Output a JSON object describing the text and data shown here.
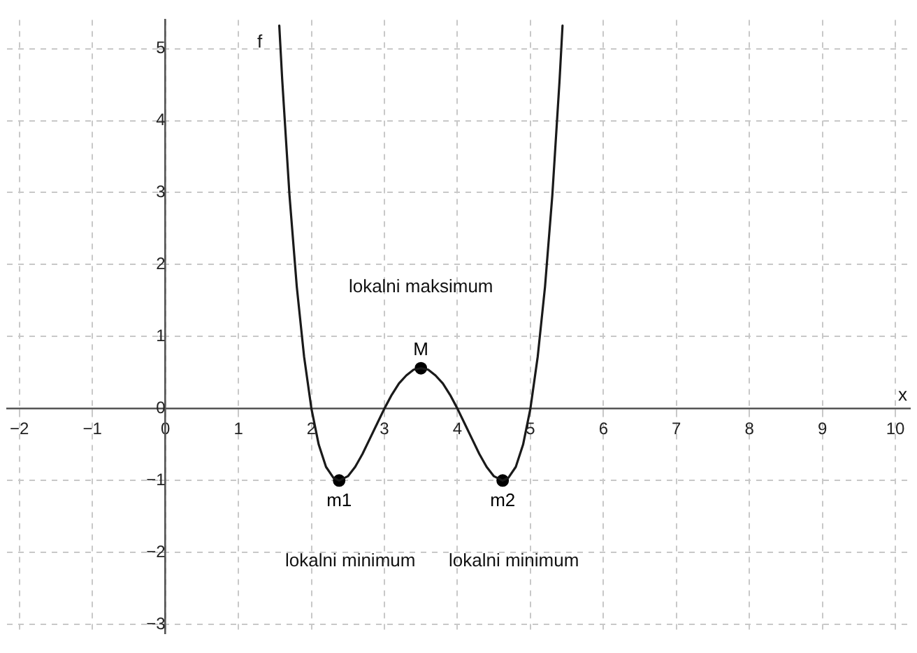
{
  "chart_data": {
    "type": "line",
    "xlabel": "x",
    "xlim": [
      -2.17,
      10.2
    ],
    "ylim": [
      -3.12,
      5.4
    ],
    "xticks": [
      -2,
      -1,
      0,
      1,
      2,
      3,
      4,
      5,
      6,
      7,
      8,
      9,
      10
    ],
    "yticks": [
      -3,
      -2,
      -1,
      0,
      1,
      2,
      3,
      4,
      5
    ],
    "grid": true,
    "legend": false,
    "series": [
      {
        "type": "line",
        "name": "f",
        "color": "#1a1a1a",
        "marker": "none",
        "line_style": "solid",
        "x": [
          1.56,
          1.6,
          1.7,
          1.8,
          1.9,
          2.0,
          2.1,
          2.2,
          2.3,
          2.38,
          2.5,
          2.6,
          2.7,
          2.8,
          2.9,
          3.0,
          3.1,
          3.2,
          3.3,
          3.4,
          3.5,
          3.6,
          3.7,
          3.8,
          3.9,
          4.0,
          4.1,
          4.2,
          4.3,
          4.4,
          4.5,
          4.62,
          4.7,
          4.8,
          4.9,
          5.0,
          5.1,
          5.2,
          5.3,
          5.4,
          5.44
        ],
        "values": [
          5.32,
          4.57,
          2.96,
          1.69,
          0.72,
          0,
          -0.5,
          -0.81,
          -0.96,
          -1.0,
          -0.94,
          -0.81,
          -0.63,
          -0.42,
          -0.21,
          0,
          0.19,
          0.35,
          0.46,
          0.54,
          0.56,
          0.54,
          0.46,
          0.35,
          0.19,
          0,
          -0.21,
          -0.42,
          -0.63,
          -0.81,
          -0.94,
          -1.0,
          -0.96,
          -0.81,
          -0.5,
          0,
          0.72,
          1.69,
          2.96,
          4.57,
          5.32
        ]
      },
      {
        "type": "scatter",
        "name": "M",
        "color": "#000000",
        "marker": "circle",
        "x": [
          3.5
        ],
        "values": [
          0.56
        ]
      },
      {
        "type": "scatter",
        "name": "m1",
        "color": "#000000",
        "marker": "circle",
        "x": [
          2.38
        ],
        "values": [
          -1.0
        ]
      },
      {
        "type": "scatter",
        "name": "m2",
        "color": "#000000",
        "marker": "circle",
        "x": [
          4.62
        ],
        "values": [
          -1.0
        ]
      }
    ],
    "annotations": [
      "lokalni maksimum",
      "lokalni minimum",
      "lokalni minimum"
    ]
  }
}
